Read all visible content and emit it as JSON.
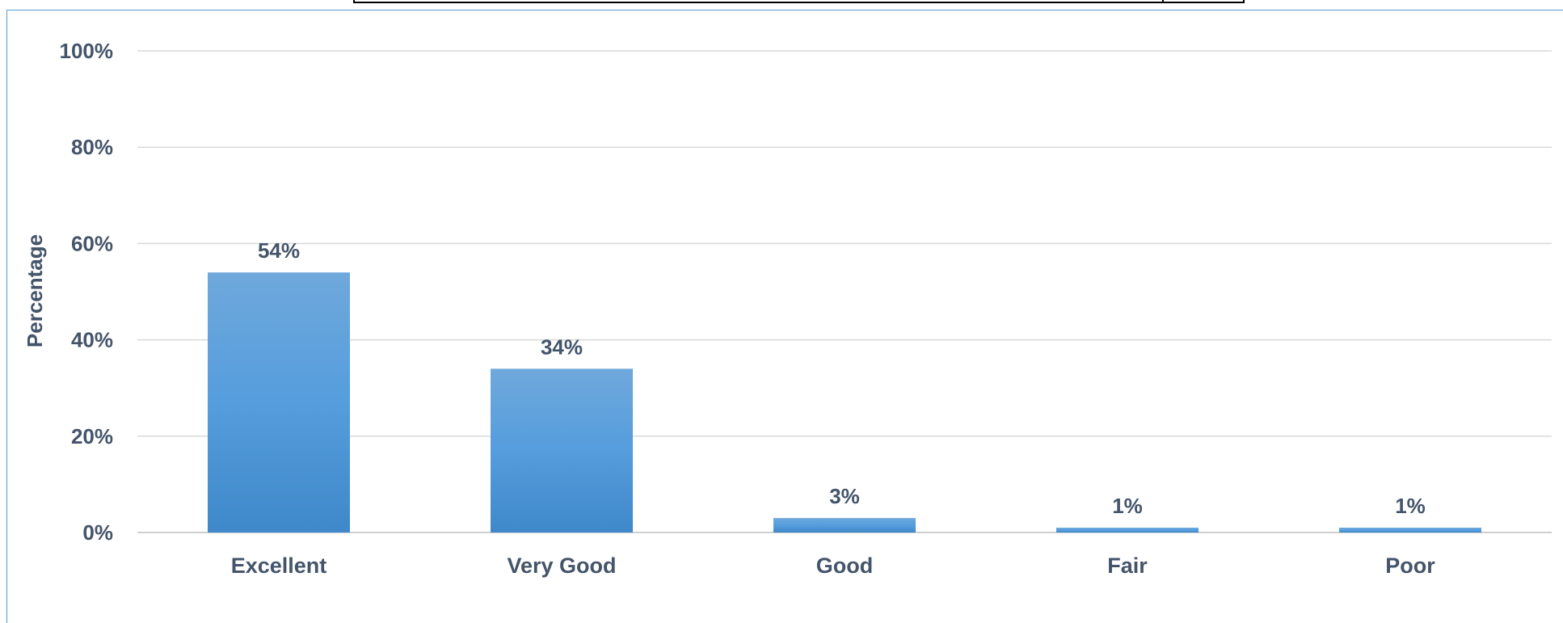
{
  "chart_data": {
    "type": "bar",
    "title": "",
    "xlabel": "",
    "ylabel": "Percentage",
    "categories": [
      "Excellent",
      "Very Good",
      "Good",
      "Fair",
      "Poor"
    ],
    "values": [
      54,
      34,
      3,
      1,
      1
    ],
    "value_labels": [
      "54%",
      "34%",
      "3%",
      "1%",
      "1%"
    ],
    "y_ticks": [
      0,
      20,
      40,
      60,
      80,
      100
    ],
    "y_tick_labels": [
      "0%",
      "20%",
      "40%",
      "60%",
      "80%",
      "100%"
    ],
    "ylim": [
      0,
      100
    ],
    "grid": true,
    "legend": "none",
    "colors": {
      "bar_top": "#6fa8dc",
      "bar_bottom": "#3f88c9",
      "grid": "#d9d9d9",
      "text": "#44546a",
      "frame": "#5b9bd5"
    }
  }
}
